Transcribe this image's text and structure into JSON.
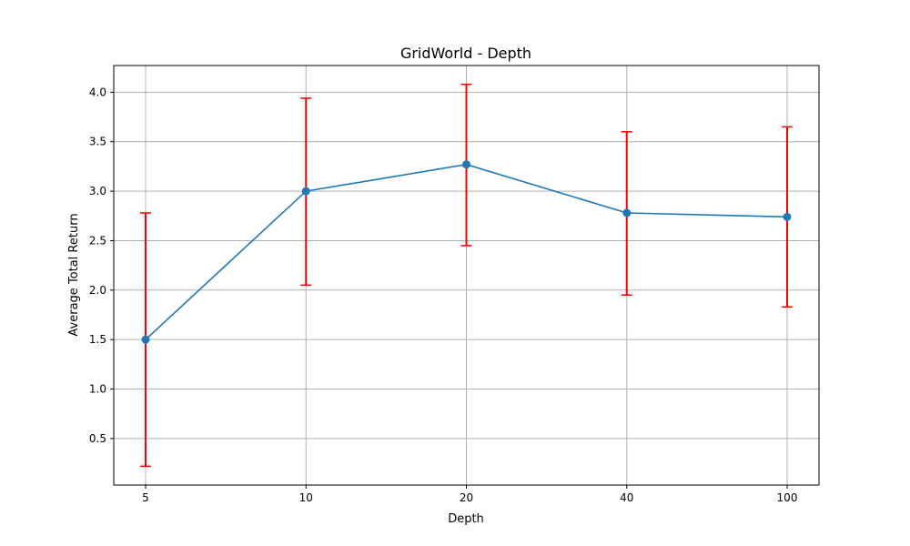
{
  "chart_data": {
    "type": "line",
    "title": "GridWorld - Depth",
    "xlabel": "Depth",
    "ylabel": "Average Total Return",
    "categories": [
      "5",
      "10",
      "20",
      "40",
      "100"
    ],
    "series": [
      {
        "values": [
          1.5,
          3.0,
          3.27,
          2.78,
          2.74
        ],
        "error_low": [
          0.22,
          2.05,
          2.45,
          1.95,
          1.83
        ],
        "error_high": [
          2.78,
          3.94,
          4.08,
          3.6,
          3.65
        ],
        "color": "#1f77b4",
        "error_color": "#ff0000",
        "marker": "circle"
      }
    ],
    "yticks": [
      "0.5",
      "1.0",
      "1.5",
      "2.0",
      "2.5",
      "3.0",
      "3.5",
      "4.0"
    ],
    "ylim": [
      0.03,
      4.27
    ],
    "grid": true,
    "legend": "none"
  }
}
